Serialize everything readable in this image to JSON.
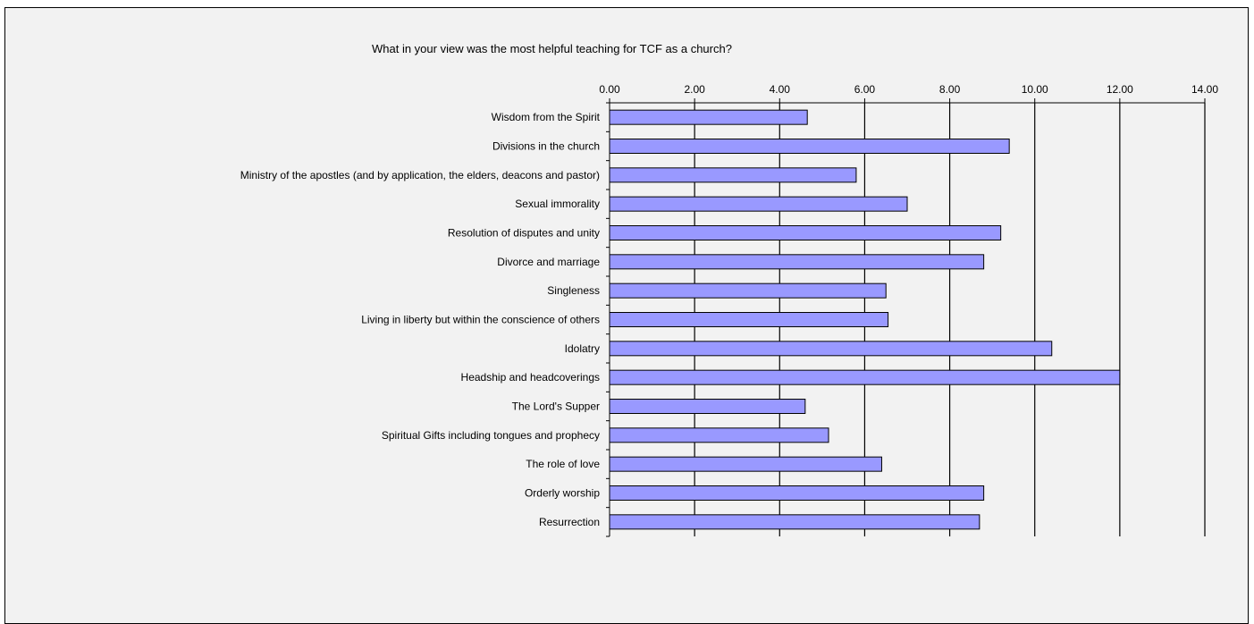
{
  "chart_data": {
    "type": "bar",
    "orientation": "horizontal",
    "title": "What in your view was the most helpful teaching for TCF as a church?",
    "xlabel": "",
    "ylabel": "",
    "xlim": [
      0,
      14
    ],
    "x_ticks": [
      "0.00",
      "2.00",
      "4.00",
      "6.00",
      "8.00",
      "10.00",
      "12.00",
      "14.00"
    ],
    "x_axis_position": "top",
    "grid": "vertical",
    "legend": "none",
    "bar_color": "#9999ff",
    "categories": [
      "Wisdom from the Spirit",
      "Divisions in the church",
      "Ministry of the apostles (and by application, the elders, deacons and pastor)",
      "Sexual immorality",
      "Resolution of disputes and unity",
      "Divorce and marriage",
      "Singleness",
      "Living in liberty but within the conscience of others",
      "Idolatry",
      "Headship and headcoverings",
      "The Lord's Supper",
      "Spiritual Gifts including tongues and prophecy",
      "The role of love",
      "Orderly worship",
      "Resurrection"
    ],
    "values": [
      4.65,
      9.4,
      5.8,
      7.0,
      9.2,
      8.8,
      6.5,
      6.55,
      10.4,
      12.0,
      4.6,
      5.15,
      6.4,
      8.8,
      8.7
    ]
  }
}
